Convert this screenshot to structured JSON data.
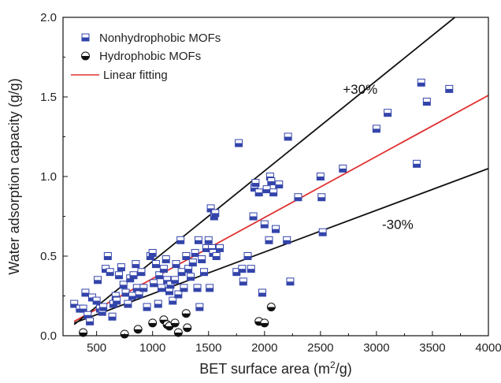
{
  "chart_data": {
    "type": "scatter",
    "xlabel": "BET surface area (m",
    "xlabel_sup": "2",
    "xlabel_tail": "/g)",
    "ylabel": "Water adsorption capacity (g/g)",
    "xlim": [
      200,
      4000
    ],
    "ylim": [
      0,
      2.0
    ],
    "x_ticks": [
      500,
      1000,
      1500,
      2000,
      2500,
      3000,
      3500,
      4000
    ],
    "x_tick_labels": [
      "500",
      "1000",
      "1500",
      "2000",
      "2500",
      "3000",
      "3500",
      "4000"
    ],
    "y_ticks": [
      0,
      0.5,
      1.0,
      1.5,
      2.0
    ],
    "y_tick_labels": [
      "0.0",
      "0.5",
      "1.0",
      "1.5",
      "2.0"
    ],
    "grid": false,
    "legend_position": "top-left",
    "legend": [
      {
        "label": "Nonhydrophobic MOFs",
        "marker": "half-filled-square",
        "color": "#3344aa"
      },
      {
        "label": "Hydrophobic MOFs",
        "marker": "half-filled-circle",
        "color": "#111111"
      },
      {
        "label": "Linear fitting",
        "marker": "line",
        "color": "#e03030"
      }
    ],
    "series": [
      {
        "name": "Nonhydrophobic MOFs",
        "points": [
          [
            300,
            0.2
          ],
          [
            350,
            0.17
          ],
          [
            380,
            0.17
          ],
          [
            400,
            0.27
          ],
          [
            420,
            0.13
          ],
          [
            440,
            0.09
          ],
          [
            460,
            0.24
          ],
          [
            500,
            0.22
          ],
          [
            510,
            0.35
          ],
          [
            530,
            0.17
          ],
          [
            550,
            0.15
          ],
          [
            560,
            0.18
          ],
          [
            580,
            0.42
          ],
          [
            600,
            0.5
          ],
          [
            620,
            0.4
          ],
          [
            640,
            0.12
          ],
          [
            650,
            0.2
          ],
          [
            670,
            0.25
          ],
          [
            680,
            0.22
          ],
          [
            700,
            0.38
          ],
          [
            720,
            0.43
          ],
          [
            740,
            0.32
          ],
          [
            760,
            0.27
          ],
          [
            780,
            0.2
          ],
          [
            800,
            0.36
          ],
          [
            820,
            0.25
          ],
          [
            830,
            0.38
          ],
          [
            850,
            0.45
          ],
          [
            860,
            0.3
          ],
          [
            880,
            0.26
          ],
          [
            900,
            0.4
          ],
          [
            920,
            0.3
          ],
          [
            950,
            0.18
          ],
          [
            980,
            0.5
          ],
          [
            1000,
            0.52
          ],
          [
            1010,
            0.33
          ],
          [
            1030,
            0.45
          ],
          [
            1050,
            0.2
          ],
          [
            1060,
            0.38
          ],
          [
            1080,
            0.3
          ],
          [
            1100,
            0.42
          ],
          [
            1120,
            0.48
          ],
          [
            1130,
            0.35
          ],
          [
            1150,
            0.28
          ],
          [
            1160,
            0.32
          ],
          [
            1180,
            0.22
          ],
          [
            1200,
            0.35
          ],
          [
            1210,
            0.45
          ],
          [
            1230,
            0.26
          ],
          [
            1250,
            0.6
          ],
          [
            1260,
            0.4
          ],
          [
            1280,
            0.3
          ],
          [
            1300,
            0.5
          ],
          [
            1320,
            0.42
          ],
          [
            1340,
            0.37
          ],
          [
            1360,
            0.46
          ],
          [
            1380,
            0.52
          ],
          [
            1400,
            0.3
          ],
          [
            1410,
            0.6
          ],
          [
            1420,
            0.18
          ],
          [
            1440,
            0.48
          ],
          [
            1460,
            0.4
          ],
          [
            1480,
            0.55
          ],
          [
            1500,
            0.6
          ],
          [
            1510,
            0.3
          ],
          [
            1520,
            0.8
          ],
          [
            1530,
            0.55
          ],
          [
            1540,
            0.52
          ],
          [
            1550,
            0.75
          ],
          [
            1560,
            0.77
          ],
          [
            1570,
            0.5
          ],
          [
            1600,
            0.55
          ],
          [
            1750,
            0.4
          ],
          [
            1770,
            1.21
          ],
          [
            1800,
            0.42
          ],
          [
            1810,
            0.34
          ],
          [
            1850,
            0.5
          ],
          [
            1880,
            0.42
          ],
          [
            1900,
            0.75
          ],
          [
            1910,
            0.93
          ],
          [
            1920,
            0.96
          ],
          [
            1950,
            0.9
          ],
          [
            1980,
            0.27
          ],
          [
            2000,
            0.7
          ],
          [
            2020,
            0.92
          ],
          [
            2040,
            0.6
          ],
          [
            2050,
            1.0
          ],
          [
            2060,
            0.97
          ],
          [
            2080,
            0.9
          ],
          [
            2100,
            0.67
          ],
          [
            2130,
            0.95
          ],
          [
            2200,
            0.6
          ],
          [
            2210,
            1.25
          ],
          [
            2230,
            0.34
          ],
          [
            2300,
            0.87
          ],
          [
            2500,
            1.0
          ],
          [
            2510,
            0.87
          ],
          [
            2520,
            0.65
          ],
          [
            2700,
            1.05
          ],
          [
            3000,
            1.3
          ],
          [
            3100,
            1.4
          ],
          [
            3360,
            1.08
          ],
          [
            3400,
            1.59
          ],
          [
            3450,
            1.47
          ],
          [
            3650,
            1.55
          ]
        ]
      },
      {
        "name": "Hydrophobic MOFs",
        "points": [
          [
            380,
            0.02
          ],
          [
            750,
            0.01
          ],
          [
            870,
            0.04
          ],
          [
            1000,
            0.08
          ],
          [
            1100,
            0.1
          ],
          [
            1130,
            0.07
          ],
          [
            1150,
            0.06
          ],
          [
            1200,
            0.08
          ],
          [
            1230,
            0.02
          ],
          [
            1300,
            0.14
          ],
          [
            1310,
            0.05
          ],
          [
            1950,
            0.09
          ],
          [
            2000,
            0.08
          ],
          [
            2060,
            0.18
          ]
        ]
      }
    ],
    "lines": [
      {
        "name": "Linear fitting",
        "color": "#e03030",
        "points": [
          [
            300,
            0.09
          ],
          [
            4000,
            1.51
          ]
        ]
      },
      {
        "name": "+30%",
        "color": "#111111",
        "points": [
          [
            300,
            0.07
          ],
          [
            3700,
            2.0
          ]
        ]
      },
      {
        "name": "-30%",
        "color": "#111111",
        "points": [
          [
            300,
            0.08
          ],
          [
            4000,
            1.05
          ]
        ]
      }
    ],
    "annotations": [
      {
        "text": "+30%",
        "x": 2700,
        "y": 1.52
      },
      {
        "text": "-30%",
        "x": 3050,
        "y": 0.67
      }
    ]
  }
}
